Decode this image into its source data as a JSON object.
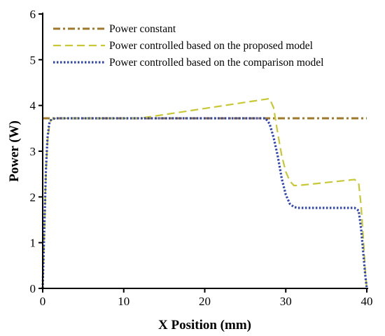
{
  "chart_data": {
    "type": "line",
    "xlabel": "X Position (mm)",
    "ylabel": "Power (W)",
    "xlim": [
      0,
      40
    ],
    "ylim": [
      0,
      6
    ],
    "xticks": [
      0,
      10,
      20,
      30,
      40
    ],
    "yticks": [
      0,
      1,
      2,
      3,
      4,
      5,
      6
    ],
    "xtick_labels": [
      "0",
      "10",
      "20",
      "30",
      "40"
    ],
    "ytick_labels": [
      "0",
      "1",
      "2",
      "3",
      "4",
      "5",
      "6"
    ],
    "grid": false,
    "legend_position": "top-left",
    "series": [
      {
        "name": "Power constant",
        "color": "#a0782a",
        "style": "dashdot",
        "x": [
          0,
          40
        ],
        "y": [
          3.72,
          3.72
        ]
      },
      {
        "name": "Power controlled based on the proposed model",
        "color": "#c8c832",
        "style": "dashed",
        "x": [
          0,
          0.2,
          0.4,
          0.6,
          0.8,
          1.0,
          1.5,
          2,
          10,
          12,
          28,
          28.5,
          29,
          29.5,
          30,
          30.5,
          31,
          31.5,
          38.5,
          39,
          39.3,
          39.6,
          39.8,
          40
        ],
        "y": [
          0,
          1.2,
          2.5,
          3.2,
          3.55,
          3.68,
          3.72,
          3.72,
          3.72,
          3.72,
          4.15,
          3.95,
          3.4,
          2.9,
          2.55,
          2.35,
          2.25,
          2.25,
          2.38,
          2.3,
          1.8,
          1.0,
          0.4,
          0
        ]
      },
      {
        "name": "Power controlled based on the comparison model",
        "color": "#2f45b5",
        "style": "dotted",
        "x": [
          0,
          0.2,
          0.4,
          0.6,
          0.8,
          1.0,
          1.5,
          2,
          27.5,
          28,
          28.5,
          29,
          29.5,
          30,
          30.5,
          31,
          31.5,
          38.5,
          39,
          39.3,
          39.6,
          39.8,
          40
        ],
        "y": [
          0,
          1.3,
          2.6,
          3.3,
          3.6,
          3.68,
          3.72,
          3.72,
          3.72,
          3.6,
          3.3,
          2.9,
          2.4,
          2.05,
          1.85,
          1.78,
          1.76,
          1.76,
          1.7,
          1.3,
          0.7,
          0.3,
          0
        ]
      }
    ]
  }
}
